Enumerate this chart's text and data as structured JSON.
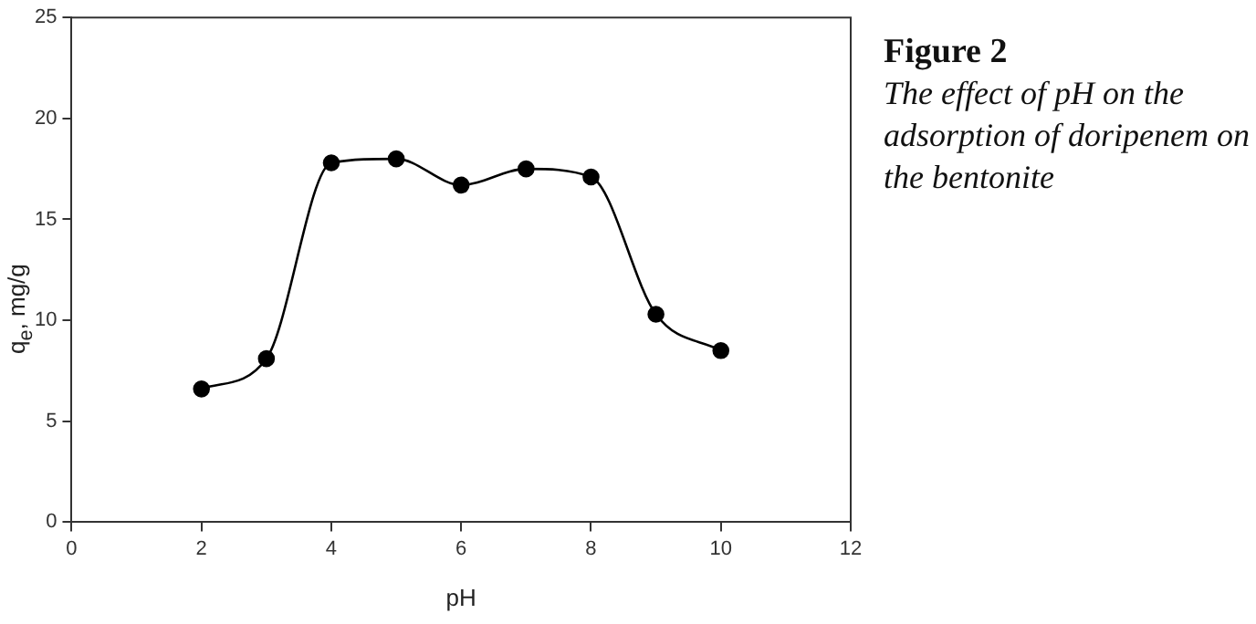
{
  "chart_data": {
    "type": "line",
    "title": "Figure 2",
    "subtitle": "The effect of pH on the adsorption of doripenem on the bentonite",
    "xlabel": "pH",
    "ylabel": "q$_{e}$, mg/g",
    "x": [
      2,
      3,
      4,
      5,
      6,
      7,
      8,
      9,
      10
    ],
    "series": [
      {
        "color": "#000000",
        "values": [
          6.6,
          8.1,
          17.8,
          18.0,
          16.7,
          17.5,
          17.1,
          10.3,
          8.5
        ]
      }
    ],
    "xlim": [
      0,
      12
    ],
    "xticks": [
      0,
      2,
      4,
      6,
      8,
      10,
      12
    ],
    "ylim": [
      0,
      25
    ],
    "yticks": [
      0,
      5,
      10,
      15,
      20,
      25
    ],
    "marker": "circle",
    "line_style": "solid",
    "grid": false,
    "legend": false
  }
}
